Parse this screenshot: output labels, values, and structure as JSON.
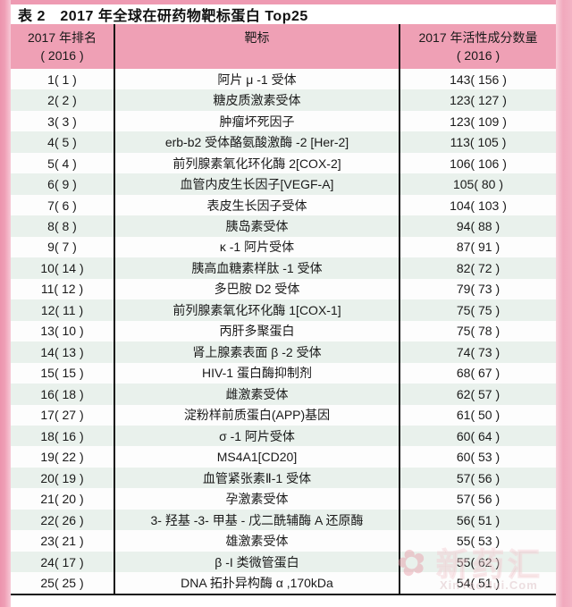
{
  "title": "表 2　2017 年全球在研药物靶标蛋白 Top25",
  "table": {
    "headers": [
      {
        "line1": "2017 年排名",
        "line2": "( 2016 )"
      },
      {
        "line1": "靶标",
        "line2": ""
      },
      {
        "line1": "2017 年活性成分数量",
        "line2": "( 2016 )"
      }
    ],
    "rows": [
      {
        "rank": "1( 1 )",
        "target": "阿片 μ -1 受体",
        "count": "143( 156 )"
      },
      {
        "rank": "2( 2 )",
        "target": "糖皮质激素受体",
        "count": "123( 127 )"
      },
      {
        "rank": "3( 3 )",
        "target": "肿瘤坏死因子",
        "count": "123( 109 )"
      },
      {
        "rank": "4( 5 )",
        "target": "erb-b2 受体酪氨酸激酶 -2 [Her-2]",
        "count": "113( 105 )"
      },
      {
        "rank": "5( 4 )",
        "target": "前列腺素氧化环化酶 2[COX-2]",
        "count": "106( 106 )"
      },
      {
        "rank": "6( 9 )",
        "target": "血管内皮生长因子[VEGF-A]",
        "count": "105( 80 )"
      },
      {
        "rank": "7( 6 )",
        "target": "表皮生长因子受体",
        "count": "104( 103 )"
      },
      {
        "rank": "8( 8 )",
        "target": "胰岛素受体",
        "count": "94( 88 )"
      },
      {
        "rank": "9( 7 )",
        "target": "κ -1 阿片受体",
        "count": "87( 91 )"
      },
      {
        "rank": "10( 14 )",
        "target": "胰高血糖素样肽 -1 受体",
        "count": "82( 72 )"
      },
      {
        "rank": "11( 12 )",
        "target": "多巴胺 D2 受体",
        "count": "79( 73 )"
      },
      {
        "rank": "12( 11 )",
        "target": "前列腺素氧化环化酶 1[COX-1]",
        "count": "75( 75 )"
      },
      {
        "rank": "13( 10 )",
        "target": "丙肝多聚蛋白",
        "count": "75( 78 )"
      },
      {
        "rank": "14( 13 )",
        "target": "肾上腺素表面 β -2 受体",
        "count": "74( 73 )"
      },
      {
        "rank": "15( 15 )",
        "target": "HIV-1 蛋白酶抑制剂",
        "count": "68( 67 )"
      },
      {
        "rank": "16( 18 )",
        "target": "雌激素受体",
        "count": "62( 57 )"
      },
      {
        "rank": "17( 27 )",
        "target": "淀粉样前质蛋白(APP)基因",
        "count": "61( 50 )"
      },
      {
        "rank": "18( 16 )",
        "target": "σ -1 阿片受体",
        "count": "60( 64 )"
      },
      {
        "rank": "19( 22 )",
        "target": "MS4A1[CD20]",
        "count": "60( 53 )"
      },
      {
        "rank": "20( 19 )",
        "target": "血管紧张素Ⅱ-1 受体",
        "count": "57( 56 )"
      },
      {
        "rank": "21( 20 )",
        "target": "孕激素受体",
        "count": "57( 56 )"
      },
      {
        "rank": "22( 26 )",
        "target": "3- 羟基 -3- 甲基 - 戊二酰辅酶 A 还原酶",
        "count": "56( 51 )"
      },
      {
        "rank": "23( 21 )",
        "target": "雄激素受体",
        "count": "55( 53 )"
      },
      {
        "rank": "24( 17 )",
        "target": "β -I 类微管蛋白",
        "count": "55( 62 )"
      },
      {
        "rank": "25( 25 )",
        "target": "DNA 拓扑异构酶 α ,170kDa",
        "count": "54( 51 )"
      }
    ]
  },
  "watermark": {
    "flower_icon": "✿",
    "text": "新药汇",
    "subtext": "XinYaoHui.Com"
  },
  "colors": {
    "frame_pink": "#ee9ab2",
    "frame_pink_light": "#f7c9d6",
    "header_pink": "#efa0b5",
    "row_alt_green": "#e9f1ec",
    "row_white": "#fdfdfd",
    "rule_black": "#151515"
  }
}
